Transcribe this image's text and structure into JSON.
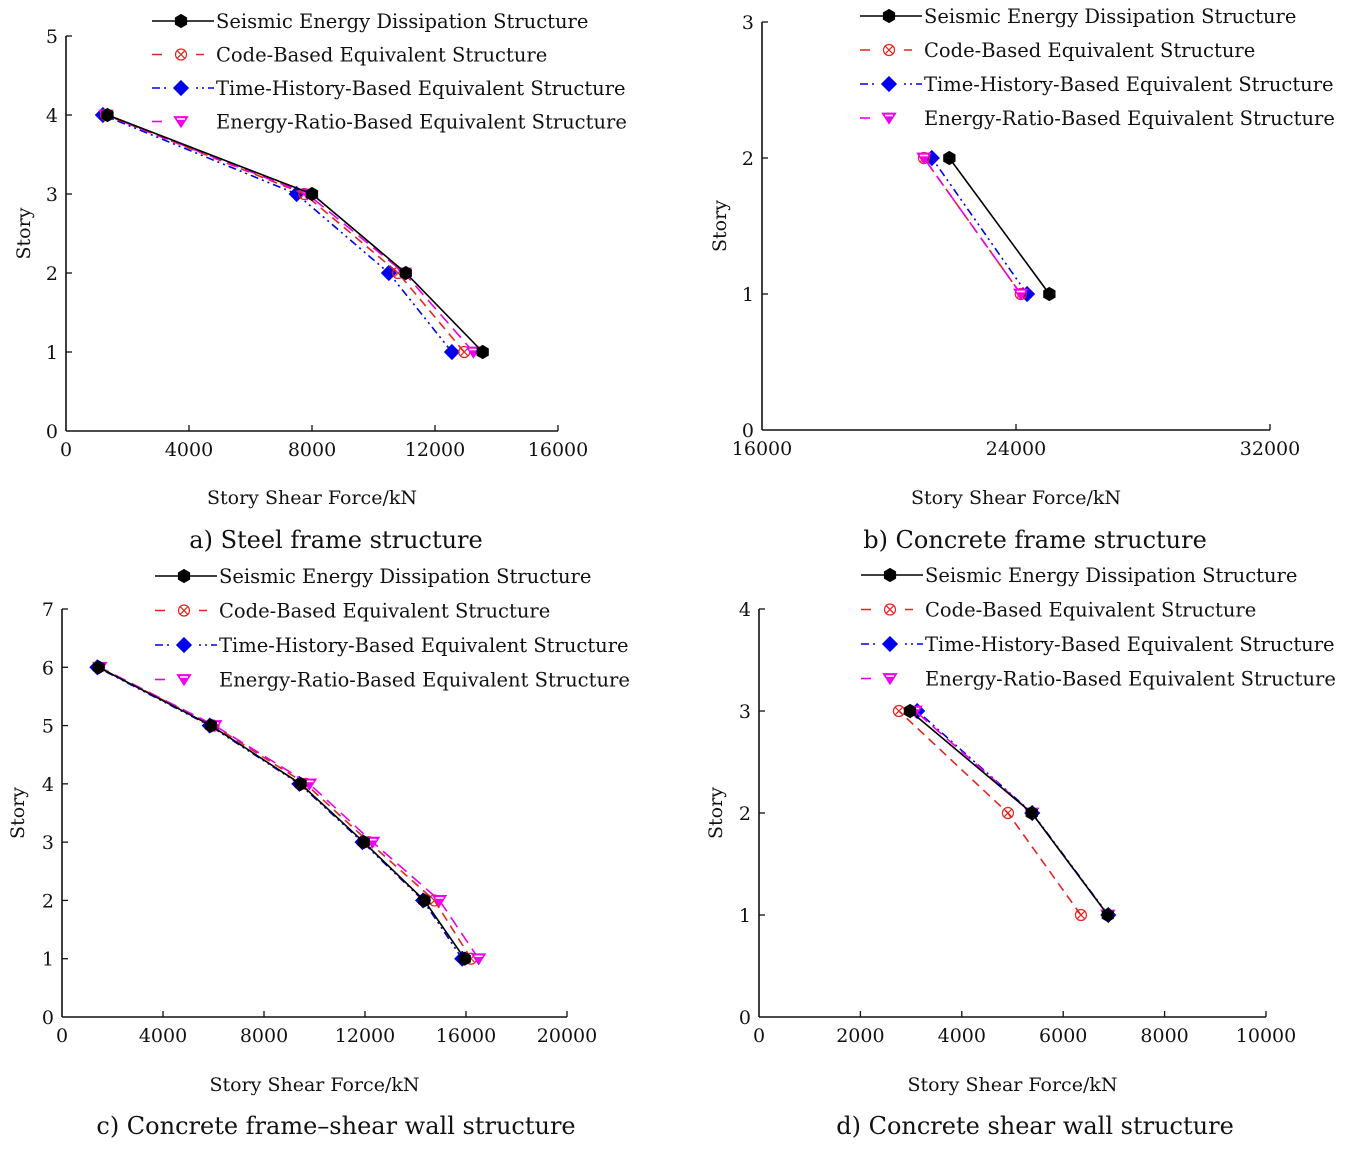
{
  "figure": {
    "legend_entries": [
      {
        "name": "Seismic Energy Dissipation Structure",
        "color": "#000000",
        "dash": "solid",
        "marker": "hexagon"
      },
      {
        "name": "Code-Based Equivalent Structure",
        "color": "#e8231f",
        "dash": "dashed",
        "marker": "circle-x"
      },
      {
        "name": "Time-History-Based Equivalent Structure",
        "color": "#0000ee",
        "dash": "dash-dot-dot",
        "marker": "diamond"
      },
      {
        "name": "Energy-Ratio-Based Equivalent Structure",
        "color": "#ee00ee",
        "dash": "long-dash",
        "marker": "triangle-down"
      }
    ]
  },
  "chart_data": [
    {
      "type": "line",
      "panel": "a",
      "title": "a) Steel frame structure",
      "xlabel": "Story Shear Force/kN",
      "ylabel": "Story",
      "xlim": [
        0,
        16000
      ],
      "ylim": [
        0,
        5
      ],
      "xticks": [
        "0",
        "4000",
        "8000",
        "12000",
        "16000"
      ],
      "yticks": [
        "0",
        "1",
        "2",
        "3",
        "4",
        "5"
      ],
      "legend_position": "top-right",
      "grid": false,
      "y": [
        1,
        2,
        3,
        4
      ],
      "series": [
        {
          "name": "Seismic Energy Dissipation Structure",
          "x": [
            13550,
            11050,
            8000,
            1350
          ]
        },
        {
          "name": "Code-Based Equivalent Structure",
          "x": [
            12950,
            10800,
            7750,
            1300
          ]
        },
        {
          "name": "Time-History-Based Equivalent Structure",
          "x": [
            12550,
            10500,
            7500,
            1200
          ]
        },
        {
          "name": "Energy-Ratio-Based Equivalent Structure",
          "x": [
            13250,
            11000,
            7850,
            1300
          ]
        }
      ]
    },
    {
      "type": "line",
      "panel": "b",
      "title": "b) Concrete frame structure",
      "xlabel": "Story Shear Force/kN",
      "ylabel": "Story",
      "xlim": [
        16000,
        32000
      ],
      "ylim": [
        0,
        3
      ],
      "xticks": [
        "16000",
        "24000",
        "32000"
      ],
      "yticks": [
        "0",
        "1",
        "2",
        "3"
      ],
      "legend_position": "top-right",
      "grid": false,
      "y": [
        1,
        2
      ],
      "series": [
        {
          "name": "Seismic Energy Dissipation Structure",
          "x": [
            25050,
            21900
          ]
        },
        {
          "name": "Code-Based Equivalent Structure",
          "x": [
            24150,
            21100
          ]
        },
        {
          "name": "Time-History-Based Equivalent Structure",
          "x": [
            24350,
            21350
          ]
        },
        {
          "name": "Energy-Ratio-Based Equivalent Structure",
          "x": [
            24150,
            21100
          ]
        }
      ]
    },
    {
      "type": "line",
      "panel": "c",
      "title": "c) Concrete frame–shear wall structure",
      "xlabel": "Story Shear Force/kN",
      "ylabel": "Story",
      "xlim": [
        0,
        20000
      ],
      "ylim": [
        0,
        7
      ],
      "xticks": [
        "0",
        "4000",
        "8000",
        "12000",
        "16000",
        "20000"
      ],
      "yticks": [
        "0",
        "1",
        "2",
        "3",
        "4",
        "5",
        "6",
        "7"
      ],
      "legend_position": "top-right",
      "grid": false,
      "y": [
        1,
        2,
        3,
        4,
        5,
        6
      ],
      "series": [
        {
          "name": "Seismic Energy Dissipation Structure",
          "x": [
            15950,
            14350,
            11950,
            9450,
            5900,
            1450
          ]
        },
        {
          "name": "Code-Based Equivalent Structure",
          "x": [
            16200,
            14750,
            12150,
            9650,
            6000,
            1450
          ]
        },
        {
          "name": "Time-History-Based Equivalent Structure",
          "x": [
            15850,
            14300,
            11900,
            9400,
            5850,
            1400
          ]
        },
        {
          "name": "Energy-Ratio-Based Equivalent Structure",
          "x": [
            16500,
            14950,
            12300,
            9800,
            6050,
            1500
          ]
        }
      ]
    },
    {
      "type": "line",
      "panel": "d",
      "title": "d) Concrete shear wall structure",
      "xlabel": "Story Shear Force/kN",
      "ylabel": "Story",
      "xlim": [
        0,
        10000
      ],
      "ylim": [
        0,
        4
      ],
      "xticks": [
        "0",
        "2000",
        "4000",
        "6000",
        "8000",
        "10000"
      ],
      "yticks": [
        "0",
        "1",
        "2",
        "3",
        "4"
      ],
      "legend_position": "top-right",
      "grid": false,
      "y": [
        1,
        2,
        3
      ],
      "series": [
        {
          "name": "Seismic Energy Dissipation Structure",
          "x": [
            6880,
            5380,
            2980
          ]
        },
        {
          "name": "Code-Based Equivalent Structure",
          "x": [
            6350,
            4910,
            2760
          ]
        },
        {
          "name": "Time-History-Based Equivalent Structure",
          "x": [
            6890,
            5390,
            3120
          ]
        },
        {
          "name": "Energy-Ratio-Based Equivalent Structure",
          "x": [
            6880,
            5380,
            3080
          ]
        }
      ]
    }
  ]
}
